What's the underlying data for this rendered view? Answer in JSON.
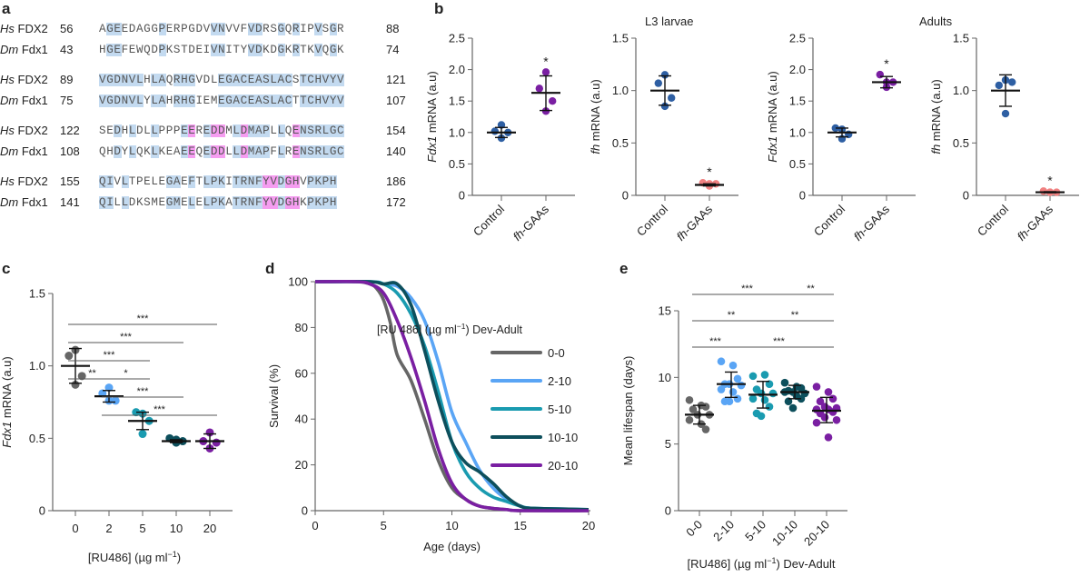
{
  "panels": {
    "a": "a",
    "b": "b",
    "c": "c",
    "d": "d",
    "e": "e"
  },
  "alignment": {
    "blocks": [
      {
        "rows": [
          {
            "species": "Hs",
            "gene": "FDX2",
            "start": "56",
            "seq": "AGEEDAGGPERPGDVVNVVFVDRSGQRIPVSGR",
            "end": "88"
          },
          {
            "species": "Dm",
            "gene": "Fdx1",
            "start": "43",
            "seq": "HGEFEWQDPKSTDEIVNITYVDKDGKRTKVQGK",
            "end": "74"
          }
        ],
        "blue": [
          1,
          2,
          8,
          15,
          16,
          20,
          21,
          24,
          26,
          29,
          31
        ],
        "magenta": []
      },
      {
        "rows": [
          {
            "species": "Hs",
            "gene": "FDX2",
            "start": "89",
            "seq": "VGDNVLHLAQRHGVDLEGACEASLACSTCHVYV",
            "end": "121"
          },
          {
            "species": "Dm",
            "gene": "Fdx1",
            "start": "75",
            "seq": "VGDNVLYLAHRHGIEMEGACEASLACTTCHVYV",
            "end": "107"
          }
        ],
        "blue": [
          0,
          1,
          2,
          3,
          4,
          5,
          7,
          8,
          10,
          11,
          12,
          16,
          17,
          18,
          19,
          20,
          21,
          22,
          23,
          24,
          25,
          27,
          28,
          29,
          30,
          31,
          32
        ],
        "magenta": []
      },
      {
        "rows": [
          {
            "species": "Hs",
            "gene": "FDX2",
            "start": "122",
            "seq": "SEDHLDLLPPPEEREDDMLDMAPLLQENSRLGC",
            "end": "154"
          },
          {
            "species": "Dm",
            "gene": "Fdx1",
            "start": "108",
            "seq": "QHDYLQKLKEAEEQEDDLLDMAPFLRENSRLGC",
            "end": "140"
          }
        ],
        "blue": [
          2,
          4,
          7,
          11,
          14,
          18,
          20,
          21,
          22,
          24,
          27,
          28,
          29,
          30,
          31,
          32
        ],
        "magenta": [
          12,
          15,
          16,
          19,
          26
        ]
      },
      {
        "rows": [
          {
            "species": "Hs",
            "gene": "FDX2",
            "start": "155",
            "seq": "QIVLTPELEGAEFTLPKITRNFYVDGHVPKPH",
            "end": "186"
          },
          {
            "species": "Dm",
            "gene": "Fdx1",
            "start": "141",
            "seq": "QILLDKSMEGMELELPKATRNFYVDGHKPKPH",
            "end": "172"
          }
        ],
        "blue": [
          0,
          1,
          3,
          9,
          10,
          12,
          14,
          15,
          16,
          18,
          19,
          20,
          21,
          24,
          26,
          28,
          29,
          30,
          31
        ],
        "magenta": [
          22,
          23,
          25,
          26
        ]
      }
    ]
  },
  "chart_data": [
    {
      "id": "b1",
      "type": "scatter",
      "group_title": "L3 larvae",
      "ylabel_italic": "Fdx1",
      "ylabel_rest": " mRNA (a.u)",
      "categories": [
        "Control",
        "fh-GAAs"
      ],
      "category_italic_prefix": [
        "",
        "fh"
      ],
      "ylim": [
        0,
        2.5
      ],
      "yticks": [
        "0",
        "0.5",
        "1.0",
        "1.5",
        "2.0",
        "2.5"
      ],
      "ytick_values": [
        0,
        0.5,
        1.0,
        1.5,
        2.0,
        2.5
      ],
      "groups": [
        {
          "color": "#2e5fa3",
          "points": [
            1.12,
            1.02,
            1.0,
            0.91
          ],
          "mean": 1.0,
          "sd_low": 0.92,
          "sd_high": 1.08,
          "sig": ""
        },
        {
          "color": "#7a1fa2",
          "points": [
            1.96,
            1.7,
            1.5,
            1.34
          ],
          "mean": 1.63,
          "sd_low": 1.35,
          "sd_high": 1.9,
          "sig": "*"
        }
      ]
    },
    {
      "id": "b2",
      "type": "scatter",
      "group_title": "",
      "ylabel_italic": "fh",
      "ylabel_rest": " mRNA (a.u)",
      "categories": [
        "Control",
        "fh-GAAs"
      ],
      "category_italic_prefix": [
        "",
        "fh"
      ],
      "ylim": [
        0,
        1.5
      ],
      "yticks": [
        "0",
        "0.5",
        "1.0",
        "1.5"
      ],
      "ytick_values": [
        0,
        0.5,
        1.0,
        1.5
      ],
      "groups": [
        {
          "color": "#2e5fa3",
          "points": [
            1.15,
            1.07,
            0.93,
            0.85
          ],
          "mean": 1.0,
          "sd_low": 0.86,
          "sd_high": 1.14,
          "sig": ""
        },
        {
          "color": "#f08080",
          "points": [
            0.09,
            0.12,
            0.11,
            0.11
          ],
          "mean": 0.1,
          "sd_low": 0.09,
          "sd_high": 0.11,
          "sig": "*"
        }
      ]
    },
    {
      "id": "b3",
      "type": "scatter",
      "group_title": "Adults",
      "ylabel_italic": "Fdx1",
      "ylabel_rest": " mRNA (a.u)",
      "categories": [
        "Control",
        "fh-GAAs"
      ],
      "category_italic_prefix": [
        "",
        "fh"
      ],
      "ylim": [
        0,
        2.5
      ],
      "yticks": [
        "0",
        "0.5",
        "1.0",
        "1.5",
        "2.0",
        "2.5"
      ],
      "ytick_values": [
        0,
        0.5,
        1.0,
        1.5,
        2.0,
        2.5
      ],
      "groups": [
        {
          "color": "#2e5fa3",
          "points": [
            1.05,
            1.07,
            0.97,
            0.9
          ],
          "mean": 1.0,
          "sd_low": 0.93,
          "sd_high": 1.07,
          "sig": ""
        },
        {
          "color": "#7a1fa2",
          "points": [
            1.72,
            1.92,
            1.8,
            1.8
          ],
          "mean": 1.8,
          "sd_low": 1.71,
          "sd_high": 1.89,
          "sig": "*"
        }
      ]
    },
    {
      "id": "b4",
      "type": "scatter",
      "group_title": "",
      "ylabel_italic": "fh",
      "ylabel_rest": " mRNA (a.u)",
      "categories": [
        "Control",
        "fh-GAAs"
      ],
      "category_italic_prefix": [
        "",
        "fh"
      ],
      "ylim": [
        0,
        1.5
      ],
      "yticks": [
        "0",
        "0.5",
        "1.0",
        "1.5"
      ],
      "ytick_values": [
        0,
        0.5,
        1.0,
        1.5
      ],
      "groups": [
        {
          "color": "#2e5fa3",
          "points": [
            1.1,
            1.05,
            1.08,
            0.78
          ],
          "mean": 1.0,
          "sd_low": 0.85,
          "sd_high": 1.15,
          "sig": ""
        },
        {
          "color": "#f08080",
          "points": [
            0.03,
            0.04,
            0.03,
            0.03
          ],
          "mean": 0.03,
          "sd_low": 0.025,
          "sd_high": 0.035,
          "sig": "*"
        }
      ]
    },
    {
      "id": "c",
      "type": "scatter",
      "ylabel_italic": "Fdx1",
      "ylabel_rest": " mRNA (a.u)",
      "xlabel": "[RU486] (µg ml",
      "xlabel_sup": "−1",
      "xlabel_end": ")",
      "categories": [
        "0",
        "2",
        "5",
        "10",
        "20"
      ],
      "ylim": [
        0,
        1.5
      ],
      "yticks": [
        "0",
        "0.5",
        "1.0",
        "1.5"
      ],
      "ytick_values": [
        0,
        0.5,
        1.0,
        1.5
      ],
      "groups": [
        {
          "color": "#666666",
          "points": [
            1.11,
            1.07,
            0.93,
            0.87
          ],
          "mean": 1.0,
          "sd_low": 0.88,
          "sd_high": 1.12,
          "sig": ""
        },
        {
          "color": "#5aa5f5",
          "points": [
            0.85,
            0.81,
            0.76,
            0.76
          ],
          "mean": 0.79,
          "sd_low": 0.75,
          "sd_high": 0.83,
          "sig": ""
        },
        {
          "color": "#1a9bb0",
          "points": [
            0.67,
            0.68,
            0.62,
            0.53
          ],
          "mean": 0.62,
          "sd_low": 0.56,
          "sd_high": 0.68,
          "sig": ""
        },
        {
          "color": "#0d4f5c",
          "points": [
            0.47,
            0.5,
            0.48,
            0.49
          ],
          "mean": 0.48,
          "sd_low": 0.47,
          "sd_high": 0.49,
          "sig": ""
        },
        {
          "color": "#7a1fa2",
          "points": [
            0.54,
            0.48,
            0.47,
            0.43
          ],
          "mean": 0.48,
          "sd_low": 0.43,
          "sd_high": 0.53,
          "sig": ""
        }
      ],
      "brackets": [
        {
          "from": 0,
          "to": 4,
          "label": "***",
          "level": 5
        },
        {
          "from": 0,
          "to": 3,
          "label": "***",
          "level": 4
        },
        {
          "from": 0,
          "to": 2,
          "label": "***",
          "level": 3
        },
        {
          "from": 0,
          "to": 1,
          "label": "**",
          "level": 2
        },
        {
          "from": 1,
          "to": 2,
          "label": "*",
          "level": 2
        },
        {
          "from": 1,
          "to": 3,
          "label": "***",
          "level": 1
        },
        {
          "from": 1,
          "to": 4,
          "label": "***",
          "level": 0
        }
      ]
    },
    {
      "id": "d",
      "type": "line",
      "xlabel": "Age (days)",
      "ylabel": "Survival (%)",
      "xlim": [
        0,
        20
      ],
      "ylim": [
        0,
        100
      ],
      "xticks": [
        "0",
        "5",
        "10",
        "15",
        "20"
      ],
      "xtick_values": [
        0,
        5,
        10,
        15,
        20
      ],
      "yticks": [
        "0",
        "20",
        "40",
        "60",
        "80",
        "100"
      ],
      "ytick_values": [
        0,
        20,
        40,
        60,
        80,
        100
      ],
      "legend_title": "[RU 486] (µg ml",
      "legend_title_sup": "−1",
      "legend_title_end": ") Dev-Adult",
      "legend_position": "top-right",
      "series": [
        {
          "name": "0-0",
          "color": "#666666",
          "x": [
            0,
            3,
            4,
            4.5,
            5,
            5.5,
            6,
            7,
            8,
            9,
            10,
            11,
            12,
            13,
            14,
            15,
            20
          ],
          "y": [
            100,
            100,
            99,
            97,
            92,
            82,
            68,
            57,
            40,
            22,
            10,
            5,
            2,
            1,
            0.5,
            0,
            0
          ]
        },
        {
          "name": "2-10",
          "color": "#5aa5f5",
          "x": [
            0,
            4,
            5,
            6,
            7,
            8,
            9,
            10,
            11,
            12,
            13,
            14,
            15,
            16,
            20
          ],
          "y": [
            100,
            100,
            99,
            98,
            93,
            83,
            65,
            43,
            30,
            18,
            10,
            5,
            2,
            1,
            0.5
          ]
        },
        {
          "name": "5-10",
          "color": "#1a9bb0",
          "x": [
            0,
            4,
            5,
            6,
            7,
            8,
            9,
            10,
            11,
            12,
            13,
            14,
            15,
            16,
            20
          ],
          "y": [
            100,
            100,
            99,
            95,
            86,
            72,
            52,
            30,
            17,
            10,
            6,
            4,
            2,
            1,
            0.5
          ]
        },
        {
          "name": "10-10",
          "color": "#0d4f5c",
          "x": [
            0,
            4,
            5,
            6,
            7,
            8,
            9,
            10,
            11,
            12,
            13,
            14,
            15,
            16,
            20
          ],
          "y": [
            100,
            100,
            99,
            99,
            90,
            70,
            48,
            30,
            21,
            17,
            12,
            6,
            2,
            1,
            0.5
          ]
        },
        {
          "name": "20-10",
          "color": "#7a1fa2",
          "x": [
            0,
            3,
            4,
            5,
            6,
            7,
            8,
            9,
            10,
            11,
            12,
            13,
            14,
            15,
            20
          ],
          "y": [
            100,
            100,
            99,
            95,
            83,
            67,
            48,
            27,
            12,
            5,
            2,
            1,
            0.5,
            0,
            0
          ]
        }
      ]
    },
    {
      "id": "e",
      "type": "scatter",
      "ylabel": "Mean lifespan (days)",
      "xlabel": "[RU486] (µg ml",
      "xlabel_sup": "−1",
      "xlabel_end": ") Dev-Adult",
      "categories": [
        "0-0",
        "2-10",
        "5-10",
        "10-10",
        "20-10"
      ],
      "ylim": [
        0,
        15
      ],
      "yticks": [
        "0",
        "5",
        "10",
        "15"
      ],
      "ytick_values": [
        0,
        5,
        10,
        15
      ],
      "groups": [
        {
          "color": "#666666",
          "points": [
            8.3,
            7.9,
            7.8,
            7.6,
            7.2,
            7.2,
            6.8,
            6.5,
            6.1
          ],
          "mean": 7.2,
          "sd_low": 6.5,
          "sd_high": 7.9,
          "sig": ""
        },
        {
          "color": "#5aa5f5",
          "points": [
            11.2,
            10.9,
            9.9,
            9.5,
            9.5,
            9.4,
            9.1,
            8.9,
            8.4,
            8.2,
            8.2
          ],
          "mean": 9.5,
          "sd_low": 8.5,
          "sd_high": 10.4,
          "sig": ""
        },
        {
          "color": "#1a9bb0",
          "points": [
            10.1,
            10.2,
            9.5,
            9.1,
            8.8,
            8.8,
            8.4,
            8.3,
            7.8,
            7.3,
            7.1
          ],
          "mean": 8.7,
          "sd_low": 7.7,
          "sd_high": 9.7,
          "sig": ""
        },
        {
          "color": "#0d4f5c",
          "points": [
            9.6,
            9.3,
            9.2,
            9.0,
            8.9,
            8.8,
            8.9,
            8.6,
            8.4,
            8.2,
            7.7
          ],
          "mean": 8.9,
          "sd_low": 8.4,
          "sd_high": 9.4,
          "sig": ""
        },
        {
          "color": "#7a1fa2",
          "points": [
            9.3,
            8.9,
            8.4,
            8.2,
            7.8,
            7.7,
            7.6,
            7.6,
            7.4,
            7.3,
            7.0,
            6.8,
            6.6,
            5.5
          ],
          "mean": 7.5,
          "sd_low": 6.6,
          "sd_high": 8.5,
          "sig": ""
        }
      ],
      "brackets": [
        {
          "from": 0,
          "to": 3,
          "label": "***",
          "level": 2
        },
        {
          "from": 3,
          "to": 4,
          "label": "**",
          "level": 2
        },
        {
          "from": 0,
          "to": 2,
          "label": "**",
          "level": 1
        },
        {
          "from": 2,
          "to": 4,
          "label": "**",
          "level": 1
        },
        {
          "from": 0,
          "to": 1,
          "label": "***",
          "level": 0
        },
        {
          "from": 1,
          "to": 4,
          "label": "***",
          "level": 0
        }
      ]
    }
  ]
}
